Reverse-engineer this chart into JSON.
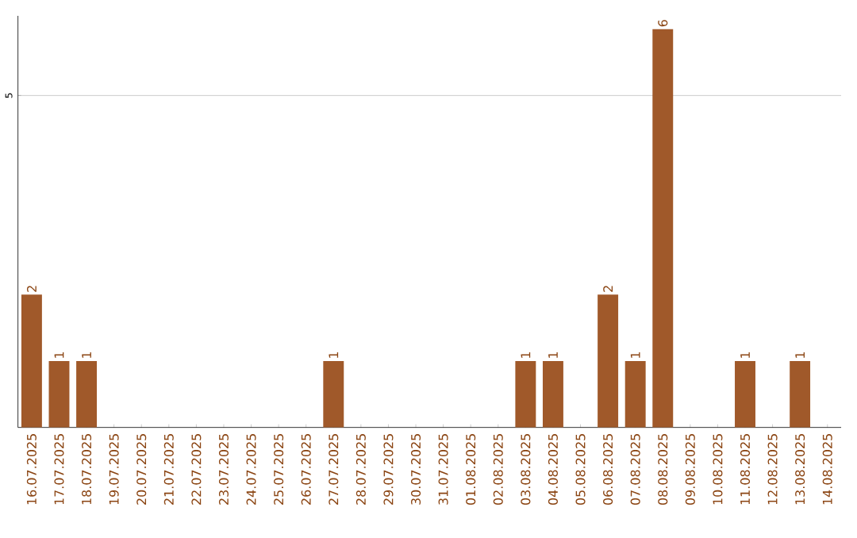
{
  "chart_data": {
    "type": "bar",
    "categories": [
      "16.07.2025",
      "17.07.2025",
      "18.07.2025",
      "19.07.2025",
      "20.07.2025",
      "21.07.2025",
      "22.07.2025",
      "23.07.2025",
      "24.07.2025",
      "25.07.2025",
      "26.07.2025",
      "27.07.2025",
      "28.07.2025",
      "29.07.2025",
      "30.07.2025",
      "31.07.2025",
      "01.08.2025",
      "02.08.2025",
      "03.08.2025",
      "04.08.2025",
      "05.08.2025",
      "06.08.2025",
      "07.08.2025",
      "08.08.2025",
      "09.08.2025",
      "10.08.2025",
      "11.08.2025",
      "12.08.2025",
      "13.08.2025",
      "14.08.2025"
    ],
    "values": [
      2,
      1,
      1,
      null,
      null,
      null,
      null,
      null,
      null,
      null,
      null,
      1,
      null,
      null,
      null,
      null,
      null,
      null,
      1,
      1,
      null,
      2,
      1,
      6,
      null,
      null,
      1,
      null,
      1,
      null
    ],
    "color": "#a0592a",
    "ylim": [
      0,
      6.2
    ],
    "yticks": [
      5
    ],
    "grid": "y",
    "data_labels": true
  }
}
